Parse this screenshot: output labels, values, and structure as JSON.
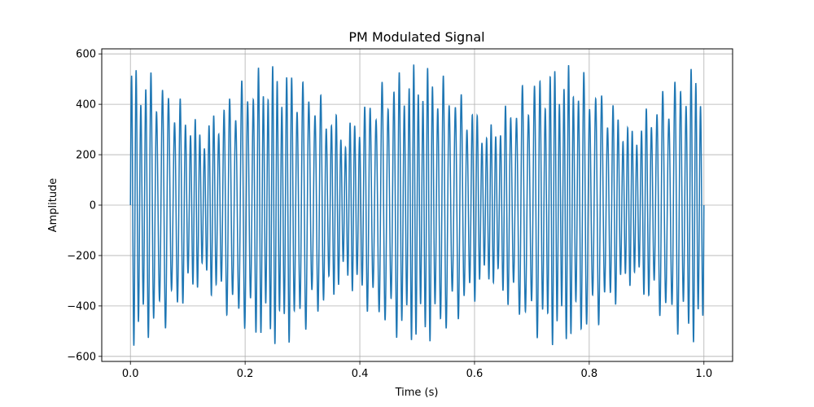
{
  "chart_data": {
    "type": "line",
    "title": "PM Modulated Signal",
    "xlabel": "Time (s)",
    "ylabel": "Amplitude",
    "xlim": [
      -0.05,
      1.05
    ],
    "ylim": [
      -620,
      620
    ],
    "xticks": [
      0.0,
      0.2,
      0.4,
      0.6,
      0.8,
      1.0
    ],
    "xtick_labels": [
      "0.0",
      "0.2",
      "0.4",
      "0.6",
      "0.8",
      "1.0"
    ],
    "yticks": [
      -600,
      -400,
      -200,
      0,
      200,
      400,
      600
    ],
    "ytick_labels": [
      "−600",
      "−400",
      "−200",
      "0",
      "200",
      "400",
      "600"
    ],
    "grid": true,
    "series": [
      {
        "color": "#1f77b4",
        "signal": {
          "amplitude_peak": 560,
          "carrier_cycles_per_second": 110,
          "modulation_frequency_hz": 8,
          "modulation_index": 2.0,
          "envelope_beat_hz": 4,
          "t_start": 0.0,
          "t_end": 1.0
        }
      }
    ]
  }
}
